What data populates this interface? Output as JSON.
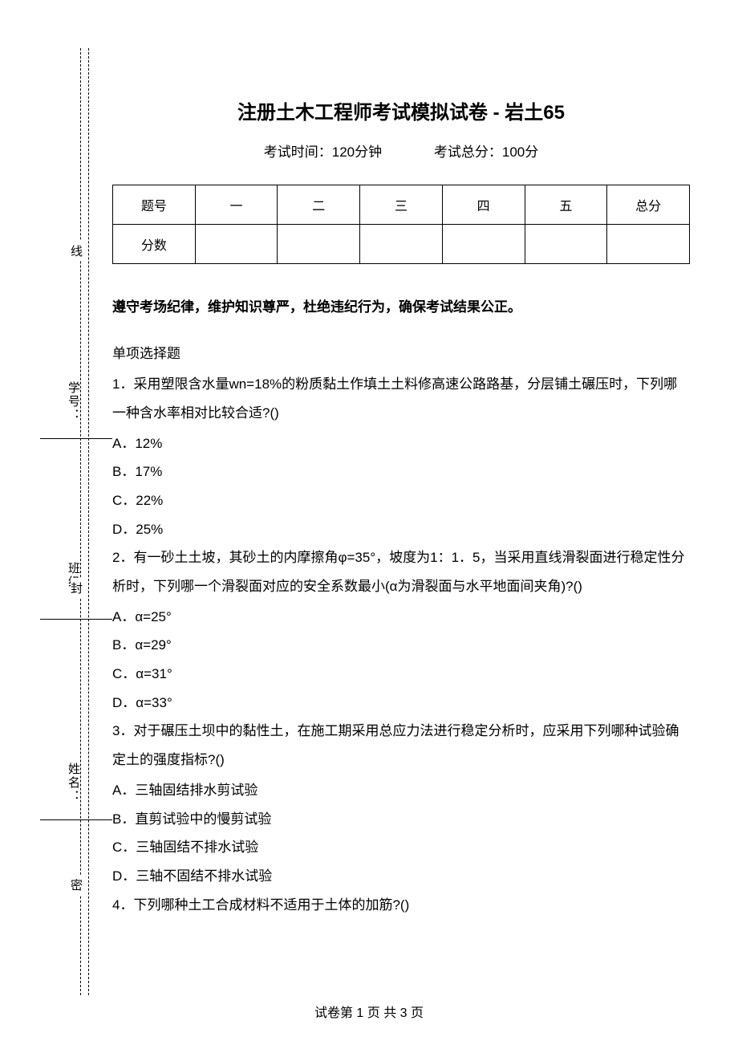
{
  "labels": {
    "name": "姓名：",
    "class": "班级：",
    "id": "学号：",
    "mi": "密",
    "feng": "封",
    "xian": "线"
  },
  "title": "注册土木工程师考试模拟试卷 - 岩土65",
  "exam": {
    "time": "考试时间：120分钟",
    "score": "考试总分：100分"
  },
  "table": {
    "h0": "题号",
    "h1": "一",
    "h2": "二",
    "h3": "三",
    "h4": "四",
    "h5": "五",
    "h6": "总分",
    "r0": "分数"
  },
  "notice": "遵守考场纪律，维护知识尊严，杜绝违纪行为，确保考试结果公正。",
  "section": "单项选择题",
  "q1": {
    "text": "1．采用塑限含水量wn=18%的粉质黏土作填土土料修高速公路路基，分层铺土碾压时，下列哪一种含水率相对比较合适?()",
    "a": "A．12%",
    "b": "B．17%",
    "c": "C．22%",
    "d": "D．25%"
  },
  "q2": {
    "text": "2．有一砂土土坡，其砂土的内摩擦角φ=35°，坡度为1：1．5，当采用直线滑裂面进行稳定性分析时，下列哪一个滑裂面对应的安全系数最小(α为滑裂面与水平地面间夹角)?()",
    "a": "A．α=25°",
    "b": "B．α=29°",
    "c": "C．α=31°",
    "d": "D．α=33°"
  },
  "q3": {
    "text": "3．对于碾压土坝中的黏性土，在施工期采用总应力法进行稳定分析时，应采用下列哪种试验确定土的强度指标?()",
    "a": "A．三轴固结排水剪试验",
    "b": "B．直剪试验中的慢剪试验",
    "c": "C．三轴固结不排水试验",
    "d": "D．三轴不固结不排水试验"
  },
  "q4": {
    "text": "4．下列哪种土工合成材料不适用于土体的加筋?()"
  },
  "footer": "试卷第 1 页 共 3 页"
}
